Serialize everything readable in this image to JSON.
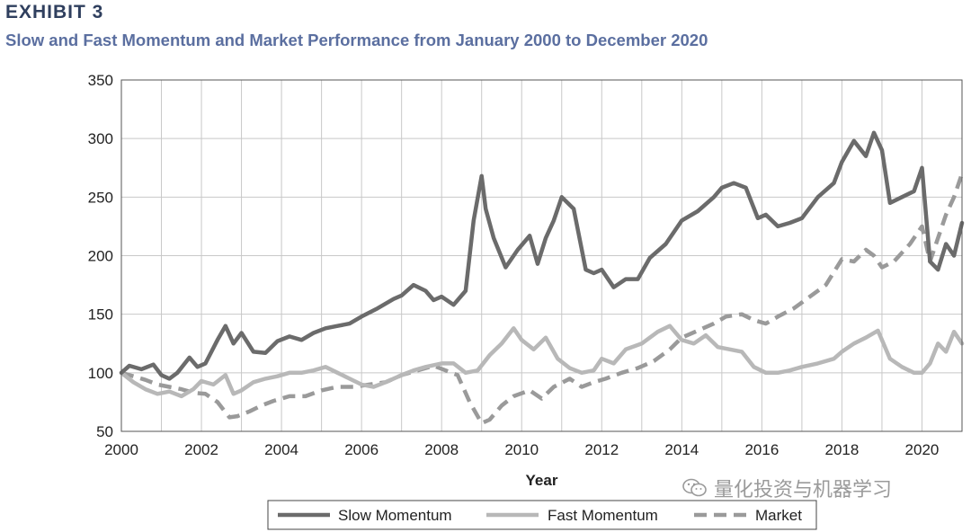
{
  "exhibit_label": "EXHIBIT 3",
  "watermark_text": "量化投资与机器学习",
  "colors": {
    "slow": "#6b6b6b",
    "fast": "#b8b8b8",
    "market": "#9a9a9a",
    "grid": "#c8c8c8",
    "title": "#2f3f5e",
    "subtitle": "#5b6fa0"
  },
  "chart_data": {
    "type": "line",
    "title": "Slow and Fast Momentum and Market Performance from January 2000 to December 2020",
    "xlabel": "Year",
    "ylabel": "",
    "xlim": [
      2000,
      2021
    ],
    "ylim": [
      50,
      350
    ],
    "xticks": [
      2000,
      2002,
      2004,
      2006,
      2008,
      2010,
      2012,
      2014,
      2016,
      2018,
      2020
    ],
    "xtick_labels": [
      "2000",
      "2002",
      "2004",
      "2006",
      "2008",
      "2010",
      "2012",
      "2014",
      "2016",
      "2018",
      "2020"
    ],
    "yticks": [
      50,
      100,
      150,
      200,
      250,
      300,
      350
    ],
    "ytick_labels": [
      "50",
      "100",
      "150",
      "200",
      "250",
      "300",
      "350"
    ],
    "grid": true,
    "legend_position": "bottom",
    "series": [
      {
        "name": "Slow Momentum",
        "style": "solid",
        "x": [
          2000,
          2000.2,
          2000.5,
          2000.8,
          2001,
          2001.2,
          2001.4,
          2001.7,
          2001.9,
          2002.1,
          2002.4,
          2002.6,
          2002.8,
          2003,
          2003.3,
          2003.6,
          2003.9,
          2004.2,
          2004.5,
          2004.8,
          2005.1,
          2005.4,
          2005.7,
          2006,
          2006.4,
          2006.8,
          2007,
          2007.3,
          2007.6,
          2007.8,
          2008,
          2008.3,
          2008.6,
          2008.8,
          2009.0,
          2009.1,
          2009.3,
          2009.6,
          2009.9,
          2010.2,
          2010.4,
          2010.6,
          2010.8,
          2011.0,
          2011.3,
          2011.6,
          2011.8,
          2012.0,
          2012.3,
          2012.6,
          2012.9,
          2013.2,
          2013.6,
          2014.0,
          2014.4,
          2014.8,
          2015.0,
          2015.3,
          2015.6,
          2015.9,
          2016.1,
          2016.4,
          2016.7,
          2017.0,
          2017.4,
          2017.8,
          2018.0,
          2018.3,
          2018.6,
          2018.8,
          2019.0,
          2019.2,
          2019.5,
          2019.8,
          2020.0,
          2020.2,
          2020.4,
          2020.6,
          2020.8,
          2021.0
        ],
        "values": [
          100,
          106,
          103,
          107,
          98,
          95,
          100,
          113,
          105,
          108,
          128,
          140,
          125,
          134,
          118,
          117,
          127,
          131,
          128,
          134,
          138,
          140,
          142,
          148,
          155,
          163,
          166,
          175,
          170,
          162,
          165,
          158,
          170,
          230,
          268,
          240,
          215,
          190,
          205,
          217,
          193,
          215,
          230,
          250,
          240,
          188,
          185,
          188,
          173,
          180,
          180,
          198,
          210,
          230,
          238,
          250,
          258,
          262,
          258,
          232,
          235,
          225,
          228,
          232,
          250,
          262,
          280,
          298,
          285,
          305,
          290,
          245,
          250,
          255,
          275,
          195,
          188,
          210,
          200,
          228
        ]
      },
      {
        "name": "Fast Momentum",
        "style": "solid",
        "x": [
          2000,
          2000.3,
          2000.6,
          2000.9,
          2001.2,
          2001.5,
          2001.8,
          2002.0,
          2002.3,
          2002.6,
          2002.8,
          2003.0,
          2003.3,
          2003.6,
          2003.9,
          2004.2,
          2004.5,
          2004.8,
          2005.1,
          2005.4,
          2005.7,
          2006.0,
          2006.3,
          2006.6,
          2007.0,
          2007.3,
          2007.6,
          2008.0,
          2008.3,
          2008.6,
          2008.9,
          2009.2,
          2009.5,
          2009.8,
          2010.0,
          2010.3,
          2010.6,
          2010.9,
          2011.2,
          2011.5,
          2011.8,
          2012.0,
          2012.3,
          2012.6,
          2013.0,
          2013.4,
          2013.7,
          2014.0,
          2014.3,
          2014.6,
          2014.9,
          2015.2,
          2015.5,
          2015.8,
          2016.1,
          2016.4,
          2016.7,
          2017.0,
          2017.4,
          2017.8,
          2018.0,
          2018.3,
          2018.6,
          2018.9,
          2019.2,
          2019.5,
          2019.8,
          2020.0,
          2020.2,
          2020.4,
          2020.6,
          2020.8,
          2021.0
        ],
        "values": [
          100,
          92,
          86,
          82,
          84,
          80,
          86,
          93,
          90,
          98,
          82,
          85,
          92,
          95,
          97,
          100,
          100,
          102,
          105,
          100,
          95,
          90,
          88,
          92,
          98,
          102,
          105,
          108,
          108,
          100,
          102,
          115,
          125,
          138,
          128,
          120,
          130,
          112,
          104,
          100,
          102,
          112,
          108,
          120,
          125,
          135,
          140,
          128,
          125,
          132,
          122,
          120,
          118,
          105,
          100,
          100,
          102,
          105,
          108,
          112,
          118,
          125,
          130,
          136,
          112,
          105,
          100,
          100,
          108,
          125,
          118,
          135,
          125
        ]
      },
      {
        "name": "Market",
        "style": "dashed",
        "x": [
          2000,
          2000.3,
          2000.6,
          2000.9,
          2001.2,
          2001.5,
          2001.8,
          2002.1,
          2002.4,
          2002.7,
          2002.9,
          2003.2,
          2003.5,
          2003.8,
          2004.2,
          2004.6,
          2005.0,
          2005.4,
          2005.8,
          2006.2,
          2006.6,
          2007.0,
          2007.4,
          2007.8,
          2008.1,
          2008.4,
          2008.7,
          2009.0,
          2009.2,
          2009.5,
          2009.8,
          2010.2,
          2010.5,
          2010.8,
          2011.2,
          2011.5,
          2011.8,
          2012.1,
          2012.5,
          2012.9,
          2013.3,
          2013.7,
          2014.0,
          2014.4,
          2014.8,
          2015.1,
          2015.5,
          2015.8,
          2016.1,
          2016.4,
          2016.8,
          2017.2,
          2017.6,
          2018.0,
          2018.3,
          2018.6,
          2018.8,
          2019.0,
          2019.3,
          2019.7,
          2020.0,
          2020.2,
          2020.4,
          2020.6,
          2020.8,
          2021.0
        ],
        "values": [
          100,
          97,
          94,
          90,
          88,
          86,
          83,
          82,
          75,
          62,
          63,
          67,
          72,
          76,
          80,
          80,
          85,
          88,
          88,
          90,
          92,
          98,
          102,
          106,
          102,
          98,
          75,
          57,
          60,
          72,
          80,
          85,
          78,
          88,
          95,
          88,
          92,
          95,
          100,
          104,
          110,
          120,
          130,
          136,
          142,
          148,
          150,
          145,
          142,
          148,
          155,
          165,
          175,
          197,
          195,
          205,
          200,
          190,
          195,
          210,
          225,
          195,
          215,
          235,
          250,
          270
        ]
      }
    ]
  }
}
